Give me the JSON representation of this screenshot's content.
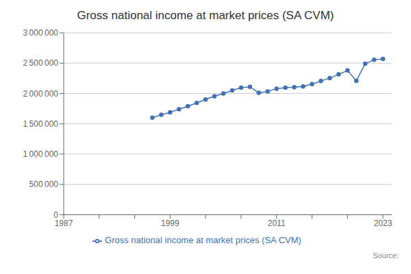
{
  "chart_data": {
    "type": "line",
    "title": "Gross national income at market prices (SA CVM)",
    "source": "Source:",
    "x": [
      1997,
      1998,
      1999,
      2000,
      2001,
      2002,
      2003,
      2004,
      2005,
      2006,
      2007,
      2008,
      2009,
      2010,
      2011,
      2012,
      2013,
      2014,
      2015,
      2016,
      2017,
      2018,
      2019,
      2020,
      2021,
      2022,
      2023
    ],
    "series": [
      {
        "name": "Gross national income at market prices (SA CVM)",
        "color": "#4272b4",
        "marker": "circle",
        "values": [
          1600000,
          1650000,
          1690000,
          1740000,
          1790000,
          1845000,
          1900000,
          1955000,
          2000000,
          2050000,
          2095000,
          2110000,
          2010000,
          2035000,
          2080000,
          2095000,
          2105000,
          2115000,
          2155000,
          2205000,
          2255000,
          2315000,
          2380000,
          2210000,
          2490000,
          2555000,
          2570000
        ]
      }
    ],
    "xlim": [
      1987,
      2024
    ],
    "xticks": [
      1987,
      {
        "value": 1991,
        "label": null
      },
      {
        "value": 1995,
        "label": null
      },
      1999,
      {
        "value": 2003,
        "label": null
      },
      {
        "value": 2007,
        "label": null
      },
      2011,
      {
        "value": 2015,
        "label": null
      },
      {
        "value": 2019,
        "label": null
      },
      2023
    ],
    "ylim": [
      0,
      3000000
    ],
    "yticks": [
      0,
      {
        "value": 500000,
        "label": "500 000"
      },
      {
        "value": 1000000,
        "label": "1 000 000"
      },
      {
        "value": 1500000,
        "label": "1 500 000"
      },
      {
        "value": 2000000,
        "label": "2 000 000"
      },
      {
        "value": 2500000,
        "label": "2 500 000"
      },
      {
        "value": 3000000,
        "label": "3 000 000"
      }
    ],
    "grid": true,
    "legend": "bottom"
  }
}
